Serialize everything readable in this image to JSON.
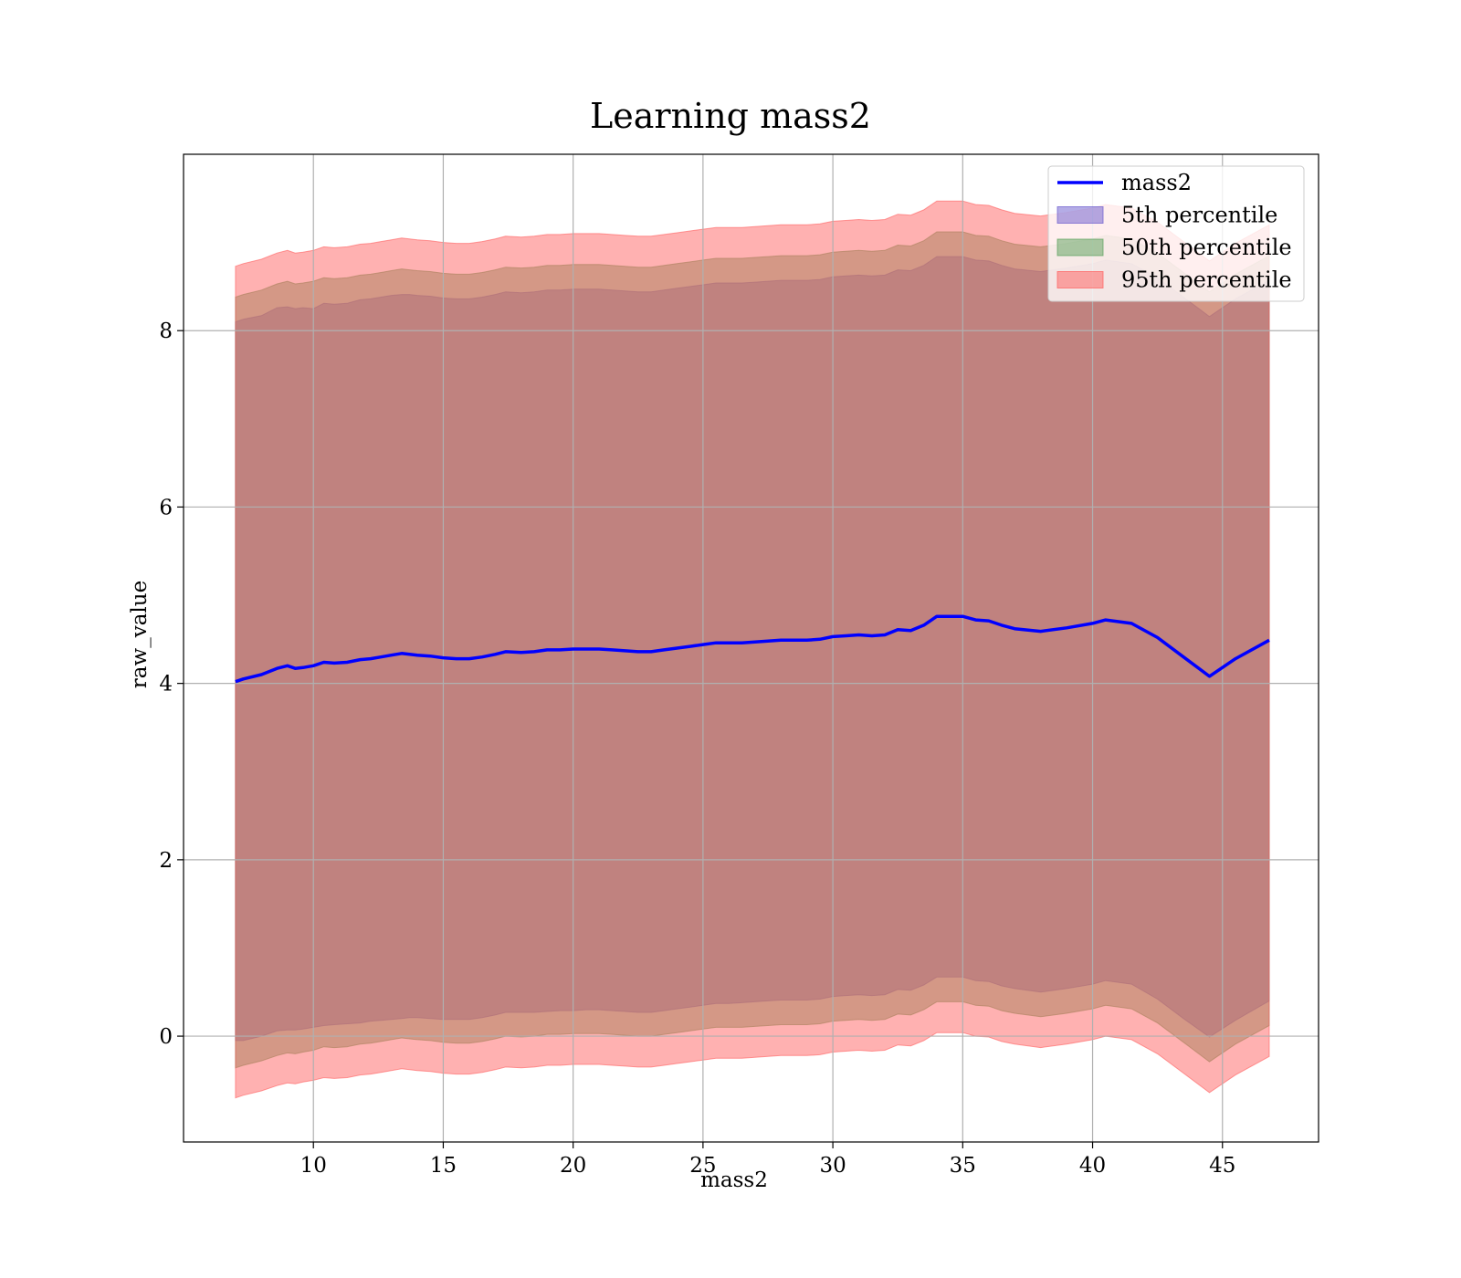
{
  "chart_data": {
    "type": "area",
    "title": "Learning mass2",
    "xlabel": "mass2",
    "ylabel": "raw_value",
    "xlim": [
      5.0,
      48.7
    ],
    "ylim": [
      -1.2,
      10.0
    ],
    "xticks": [
      10,
      15,
      20,
      25,
      30,
      35,
      40,
      45
    ],
    "yticks": [
      0,
      2,
      4,
      6,
      8
    ],
    "grid": true,
    "legend_position": "top-right",
    "x": [
      7.0,
      7.3,
      8.0,
      8.6,
      9.0,
      9.3,
      9.6,
      10.0,
      10.4,
      10.8,
      11.3,
      11.8,
      12.2,
      12.6,
      13.0,
      13.4,
      13.7,
      14.0,
      14.5,
      15.0,
      15.5,
      16.0,
      16.5,
      17.0,
      17.4,
      18.0,
      18.5,
      19.0,
      19.5,
      20.0,
      20.5,
      21.0,
      21.5,
      22.0,
      22.5,
      23.0,
      23.5,
      24.0,
      24.5,
      25.0,
      25.5,
      26.0,
      26.5,
      27.0,
      27.5,
      28.0,
      28.5,
      29.0,
      29.5,
      30.0,
      30.5,
      31.0,
      31.5,
      32.0,
      32.5,
      33.0,
      33.5,
      34.0,
      34.5,
      35.0,
      35.5,
      36.0,
      36.5,
      37.0,
      38.0,
      39.0,
      40.0,
      40.5,
      41.5,
      42.5,
      43.5,
      44.5,
      45.5,
      46.8
    ],
    "series": [
      {
        "name": "mass2",
        "kind": "line",
        "color": "#0000ff",
        "values": [
          4.02,
          4.05,
          4.1,
          4.17,
          4.2,
          4.17,
          4.18,
          4.2,
          4.24,
          4.23,
          4.24,
          4.27,
          4.28,
          4.3,
          4.32,
          4.34,
          4.33,
          4.32,
          4.31,
          4.29,
          4.28,
          4.28,
          4.3,
          4.33,
          4.36,
          4.35,
          4.36,
          4.38,
          4.38,
          4.39,
          4.39,
          4.39,
          4.38,
          4.37,
          4.36,
          4.36,
          4.38,
          4.4,
          4.42,
          4.44,
          4.46,
          4.46,
          4.46,
          4.47,
          4.48,
          4.49,
          4.49,
          4.49,
          4.5,
          4.53,
          4.54,
          4.55,
          4.54,
          4.55,
          4.61,
          4.6,
          4.66,
          4.76,
          4.76,
          4.76,
          4.72,
          4.71,
          4.66,
          4.62,
          4.59,
          4.63,
          4.68,
          4.72,
          4.68,
          4.52,
          4.3,
          4.08,
          4.28,
          4.49
        ]
      },
      {
        "name": "5th percentile",
        "kind": "band",
        "color": "#6a5acd",
        "lower": [
          -0.05,
          -0.05,
          0.0,
          0.06,
          0.07,
          0.07,
          0.08,
          0.1,
          0.12,
          0.13,
          0.14,
          0.15,
          0.17,
          0.18,
          0.19,
          0.2,
          0.21,
          0.21,
          0.2,
          0.19,
          0.19,
          0.19,
          0.21,
          0.24,
          0.27,
          0.27,
          0.27,
          0.28,
          0.29,
          0.29,
          0.3,
          0.3,
          0.29,
          0.28,
          0.27,
          0.27,
          0.29,
          0.31,
          0.33,
          0.35,
          0.37,
          0.37,
          0.38,
          0.39,
          0.4,
          0.41,
          0.41,
          0.41,
          0.42,
          0.45,
          0.46,
          0.47,
          0.46,
          0.47,
          0.53,
          0.52,
          0.58,
          0.67,
          0.67,
          0.67,
          0.63,
          0.62,
          0.57,
          0.54,
          0.5,
          0.54,
          0.59,
          0.63,
          0.59,
          0.42,
          0.2,
          -0.01,
          0.18,
          0.4
        ],
        "upper": [
          8.1,
          8.13,
          8.17,
          8.26,
          8.27,
          8.25,
          8.26,
          8.25,
          8.31,
          8.3,
          8.31,
          8.35,
          8.36,
          8.38,
          8.4,
          8.41,
          8.41,
          8.4,
          8.39,
          8.37,
          8.36,
          8.36,
          8.38,
          8.41,
          8.44,
          8.43,
          8.44,
          8.46,
          8.46,
          8.47,
          8.47,
          8.47,
          8.46,
          8.45,
          8.44,
          8.44,
          8.46,
          8.48,
          8.5,
          8.52,
          8.54,
          8.54,
          8.54,
          8.55,
          8.56,
          8.57,
          8.57,
          8.57,
          8.58,
          8.61,
          8.62,
          8.63,
          8.62,
          8.63,
          8.69,
          8.68,
          8.74,
          8.84,
          8.84,
          8.84,
          8.8,
          8.79,
          8.74,
          8.7,
          8.67,
          8.71,
          8.76,
          8.8,
          8.76,
          8.6,
          8.38,
          8.16,
          8.36,
          8.57
        ]
      },
      {
        "name": "50th percentile",
        "kind": "band",
        "color": "#5aa05a",
        "lower": [
          -0.36,
          -0.33,
          -0.28,
          -0.22,
          -0.19,
          -0.2,
          -0.18,
          -0.16,
          -0.12,
          -0.13,
          -0.12,
          -0.09,
          -0.08,
          -0.06,
          -0.04,
          -0.02,
          -0.03,
          -0.04,
          -0.05,
          -0.07,
          -0.08,
          -0.08,
          -0.06,
          -0.03,
          0.0,
          -0.01,
          0.0,
          0.02,
          0.02,
          0.03,
          0.03,
          0.03,
          0.02,
          0.01,
          0.0,
          0.0,
          0.02,
          0.04,
          0.06,
          0.08,
          0.1,
          0.1,
          0.1,
          0.11,
          0.12,
          0.13,
          0.13,
          0.13,
          0.14,
          0.17,
          0.18,
          0.19,
          0.18,
          0.19,
          0.25,
          0.24,
          0.3,
          0.39,
          0.39,
          0.39,
          0.35,
          0.34,
          0.29,
          0.26,
          0.22,
          0.26,
          0.31,
          0.35,
          0.31,
          0.15,
          -0.07,
          -0.29,
          -0.09,
          0.12
        ],
        "upper": [
          8.38,
          8.41,
          8.46,
          8.53,
          8.56,
          8.53,
          8.54,
          8.56,
          8.6,
          8.59,
          8.6,
          8.63,
          8.64,
          8.66,
          8.68,
          8.7,
          8.69,
          8.68,
          8.67,
          8.65,
          8.64,
          8.64,
          8.66,
          8.69,
          8.72,
          8.71,
          8.72,
          8.74,
          8.74,
          8.75,
          8.75,
          8.75,
          8.74,
          8.73,
          8.72,
          8.72,
          8.74,
          8.76,
          8.78,
          8.8,
          8.82,
          8.82,
          8.82,
          8.83,
          8.84,
          8.85,
          8.85,
          8.85,
          8.86,
          8.89,
          8.9,
          8.91,
          8.9,
          8.91,
          8.97,
          8.96,
          9.02,
          9.12,
          9.12,
          9.12,
          9.08,
          9.07,
          9.02,
          8.98,
          8.95,
          8.99,
          9.04,
          9.08,
          9.04,
          8.88,
          8.66,
          8.44,
          8.64,
          8.85
        ]
      },
      {
        "name": "95th percentile",
        "kind": "band",
        "color": "#ff5c5c",
        "lower": [
          -0.7,
          -0.67,
          -0.62,
          -0.56,
          -0.53,
          -0.54,
          -0.52,
          -0.5,
          -0.47,
          -0.48,
          -0.47,
          -0.44,
          -0.43,
          -0.41,
          -0.39,
          -0.37,
          -0.38,
          -0.39,
          -0.4,
          -0.42,
          -0.43,
          -0.43,
          -0.41,
          -0.38,
          -0.35,
          -0.36,
          -0.35,
          -0.33,
          -0.33,
          -0.32,
          -0.32,
          -0.32,
          -0.33,
          -0.34,
          -0.35,
          -0.35,
          -0.33,
          -0.31,
          -0.29,
          -0.27,
          -0.25,
          -0.25,
          -0.25,
          -0.24,
          -0.23,
          -0.22,
          -0.22,
          -0.22,
          -0.21,
          -0.18,
          -0.17,
          -0.16,
          -0.17,
          -0.16,
          -0.1,
          -0.11,
          -0.05,
          0.04,
          0.04,
          0.04,
          0.0,
          -0.01,
          -0.06,
          -0.09,
          -0.13,
          -0.09,
          -0.04,
          0.0,
          -0.04,
          -0.2,
          -0.42,
          -0.64,
          -0.44,
          -0.23
        ],
        "upper": [
          8.73,
          8.76,
          8.81,
          8.88,
          8.91,
          8.88,
          8.89,
          8.91,
          8.95,
          8.94,
          8.95,
          8.98,
          8.99,
          9.01,
          9.03,
          9.05,
          9.04,
          9.03,
          9.02,
          9.0,
          8.99,
          8.99,
          9.01,
          9.04,
          9.07,
          9.06,
          9.07,
          9.09,
          9.09,
          9.1,
          9.1,
          9.1,
          9.09,
          9.08,
          9.07,
          9.07,
          9.09,
          9.11,
          9.13,
          9.15,
          9.17,
          9.17,
          9.17,
          9.18,
          9.19,
          9.2,
          9.2,
          9.2,
          9.21,
          9.24,
          9.25,
          9.26,
          9.25,
          9.26,
          9.32,
          9.31,
          9.37,
          9.47,
          9.47,
          9.47,
          9.43,
          9.42,
          9.37,
          9.33,
          9.3,
          9.34,
          9.39,
          9.43,
          9.39,
          9.23,
          9.01,
          8.79,
          8.99,
          9.2
        ]
      }
    ]
  }
}
